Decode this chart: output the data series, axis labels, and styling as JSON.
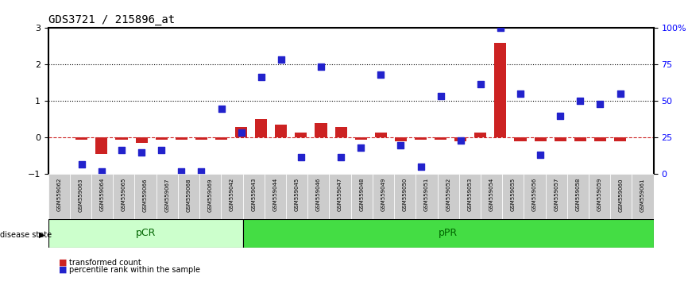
{
  "title": "GDS3721 / 215896_at",
  "samples": [
    "GSM559062",
    "GSM559063",
    "GSM559064",
    "GSM559065",
    "GSM559066",
    "GSM559067",
    "GSM559068",
    "GSM559069",
    "GSM559042",
    "GSM559043",
    "GSM559044",
    "GSM559045",
    "GSM559046",
    "GSM559047",
    "GSM559048",
    "GSM559049",
    "GSM559050",
    "GSM559051",
    "GSM559052",
    "GSM559053",
    "GSM559054",
    "GSM559055",
    "GSM559056",
    "GSM559057",
    "GSM559058",
    "GSM559059",
    "GSM559060",
    "GSM559061"
  ],
  "transformed_count": [
    -0.05,
    -0.45,
    -0.05,
    -0.15,
    -0.05,
    -0.05,
    -0.05,
    -0.05,
    0.3,
    0.5,
    0.35,
    0.15,
    0.4,
    0.3,
    -0.05,
    0.15,
    -0.1,
    -0.05,
    -0.05,
    -0.1,
    0.15,
    2.6,
    -0.1,
    -0.1,
    -0.1,
    -0.1,
    -0.1,
    -0.1
  ],
  "percentile_rank": [
    0.2,
    0.05,
    0.5,
    0.45,
    0.5,
    0.05,
    0.05,
    1.35,
    0.85,
    2.0,
    2.35,
    0.35,
    2.2,
    0.35,
    0.55,
    2.05,
    0.6,
    0.15,
    1.6,
    0.7,
    1.85,
    3.0,
    1.65,
    0.4,
    1.2,
    1.5,
    1.45,
    1.65
  ],
  "pcr_count": 9,
  "ppr_count": 19,
  "ylim_left": [
    -1,
    3
  ],
  "ylim_right": [
    0,
    100
  ],
  "yticks_left": [
    -1,
    0,
    1,
    2,
    3
  ],
  "yticks_right": [
    0,
    25,
    50,
    75,
    100
  ],
  "ytick_labels_right": [
    "0",
    "25",
    "50",
    "75",
    "100%"
  ],
  "bar_color": "#cc2222",
  "dot_color": "#2222cc",
  "hline_y": 0,
  "dotted_lines": [
    1.0,
    2.0
  ],
  "disease_state_label": "disease state",
  "pcr_label": "pCR",
  "ppr_label": "pPR",
  "legend_bar": "transformed count",
  "legend_dot": "percentile rank within the sample",
  "pcr_color": "#ccffcc",
  "ppr_color": "#44dd44",
  "tick_bg_color": "#cccccc",
  "bar_width": 0.6,
  "dot_size": 40
}
